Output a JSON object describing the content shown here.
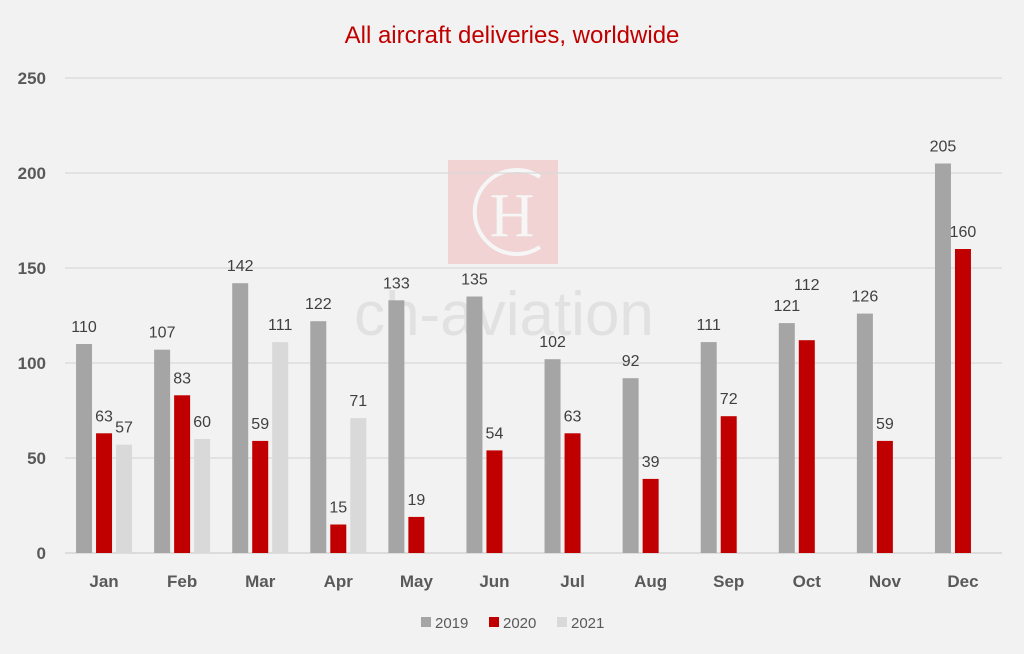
{
  "chart_data": {
    "type": "bar",
    "title": "All aircraft deliveries, worldwide",
    "xlabel": "",
    "ylabel": "",
    "ylim": [
      0,
      250
    ],
    "yticks": [
      0,
      50,
      100,
      150,
      200,
      250
    ],
    "grid": true,
    "legend_position": "bottom",
    "categories": [
      "Jan",
      "Feb",
      "Mar",
      "Apr",
      "May",
      "Jun",
      "Jul",
      "Aug",
      "Sep",
      "Oct",
      "Nov",
      "Dec"
    ],
    "series": [
      {
        "name": "2019",
        "color": "#a5a5a5",
        "values": [
          110,
          107,
          142,
          122,
          133,
          135,
          102,
          92,
          111,
          121,
          126,
          205
        ]
      },
      {
        "name": "2020",
        "color": "#c00000",
        "values": [
          63,
          83,
          59,
          15,
          19,
          54,
          63,
          39,
          72,
          112,
          59,
          160
        ]
      },
      {
        "name": "2021",
        "color": "#d9d9d9",
        "values": [
          57,
          60,
          111,
          71,
          null,
          null,
          null,
          null,
          null,
          null,
          null,
          null
        ]
      }
    ]
  },
  "watermark": {
    "logo_text": "CH",
    "brand_text": "ch-aviation"
  }
}
